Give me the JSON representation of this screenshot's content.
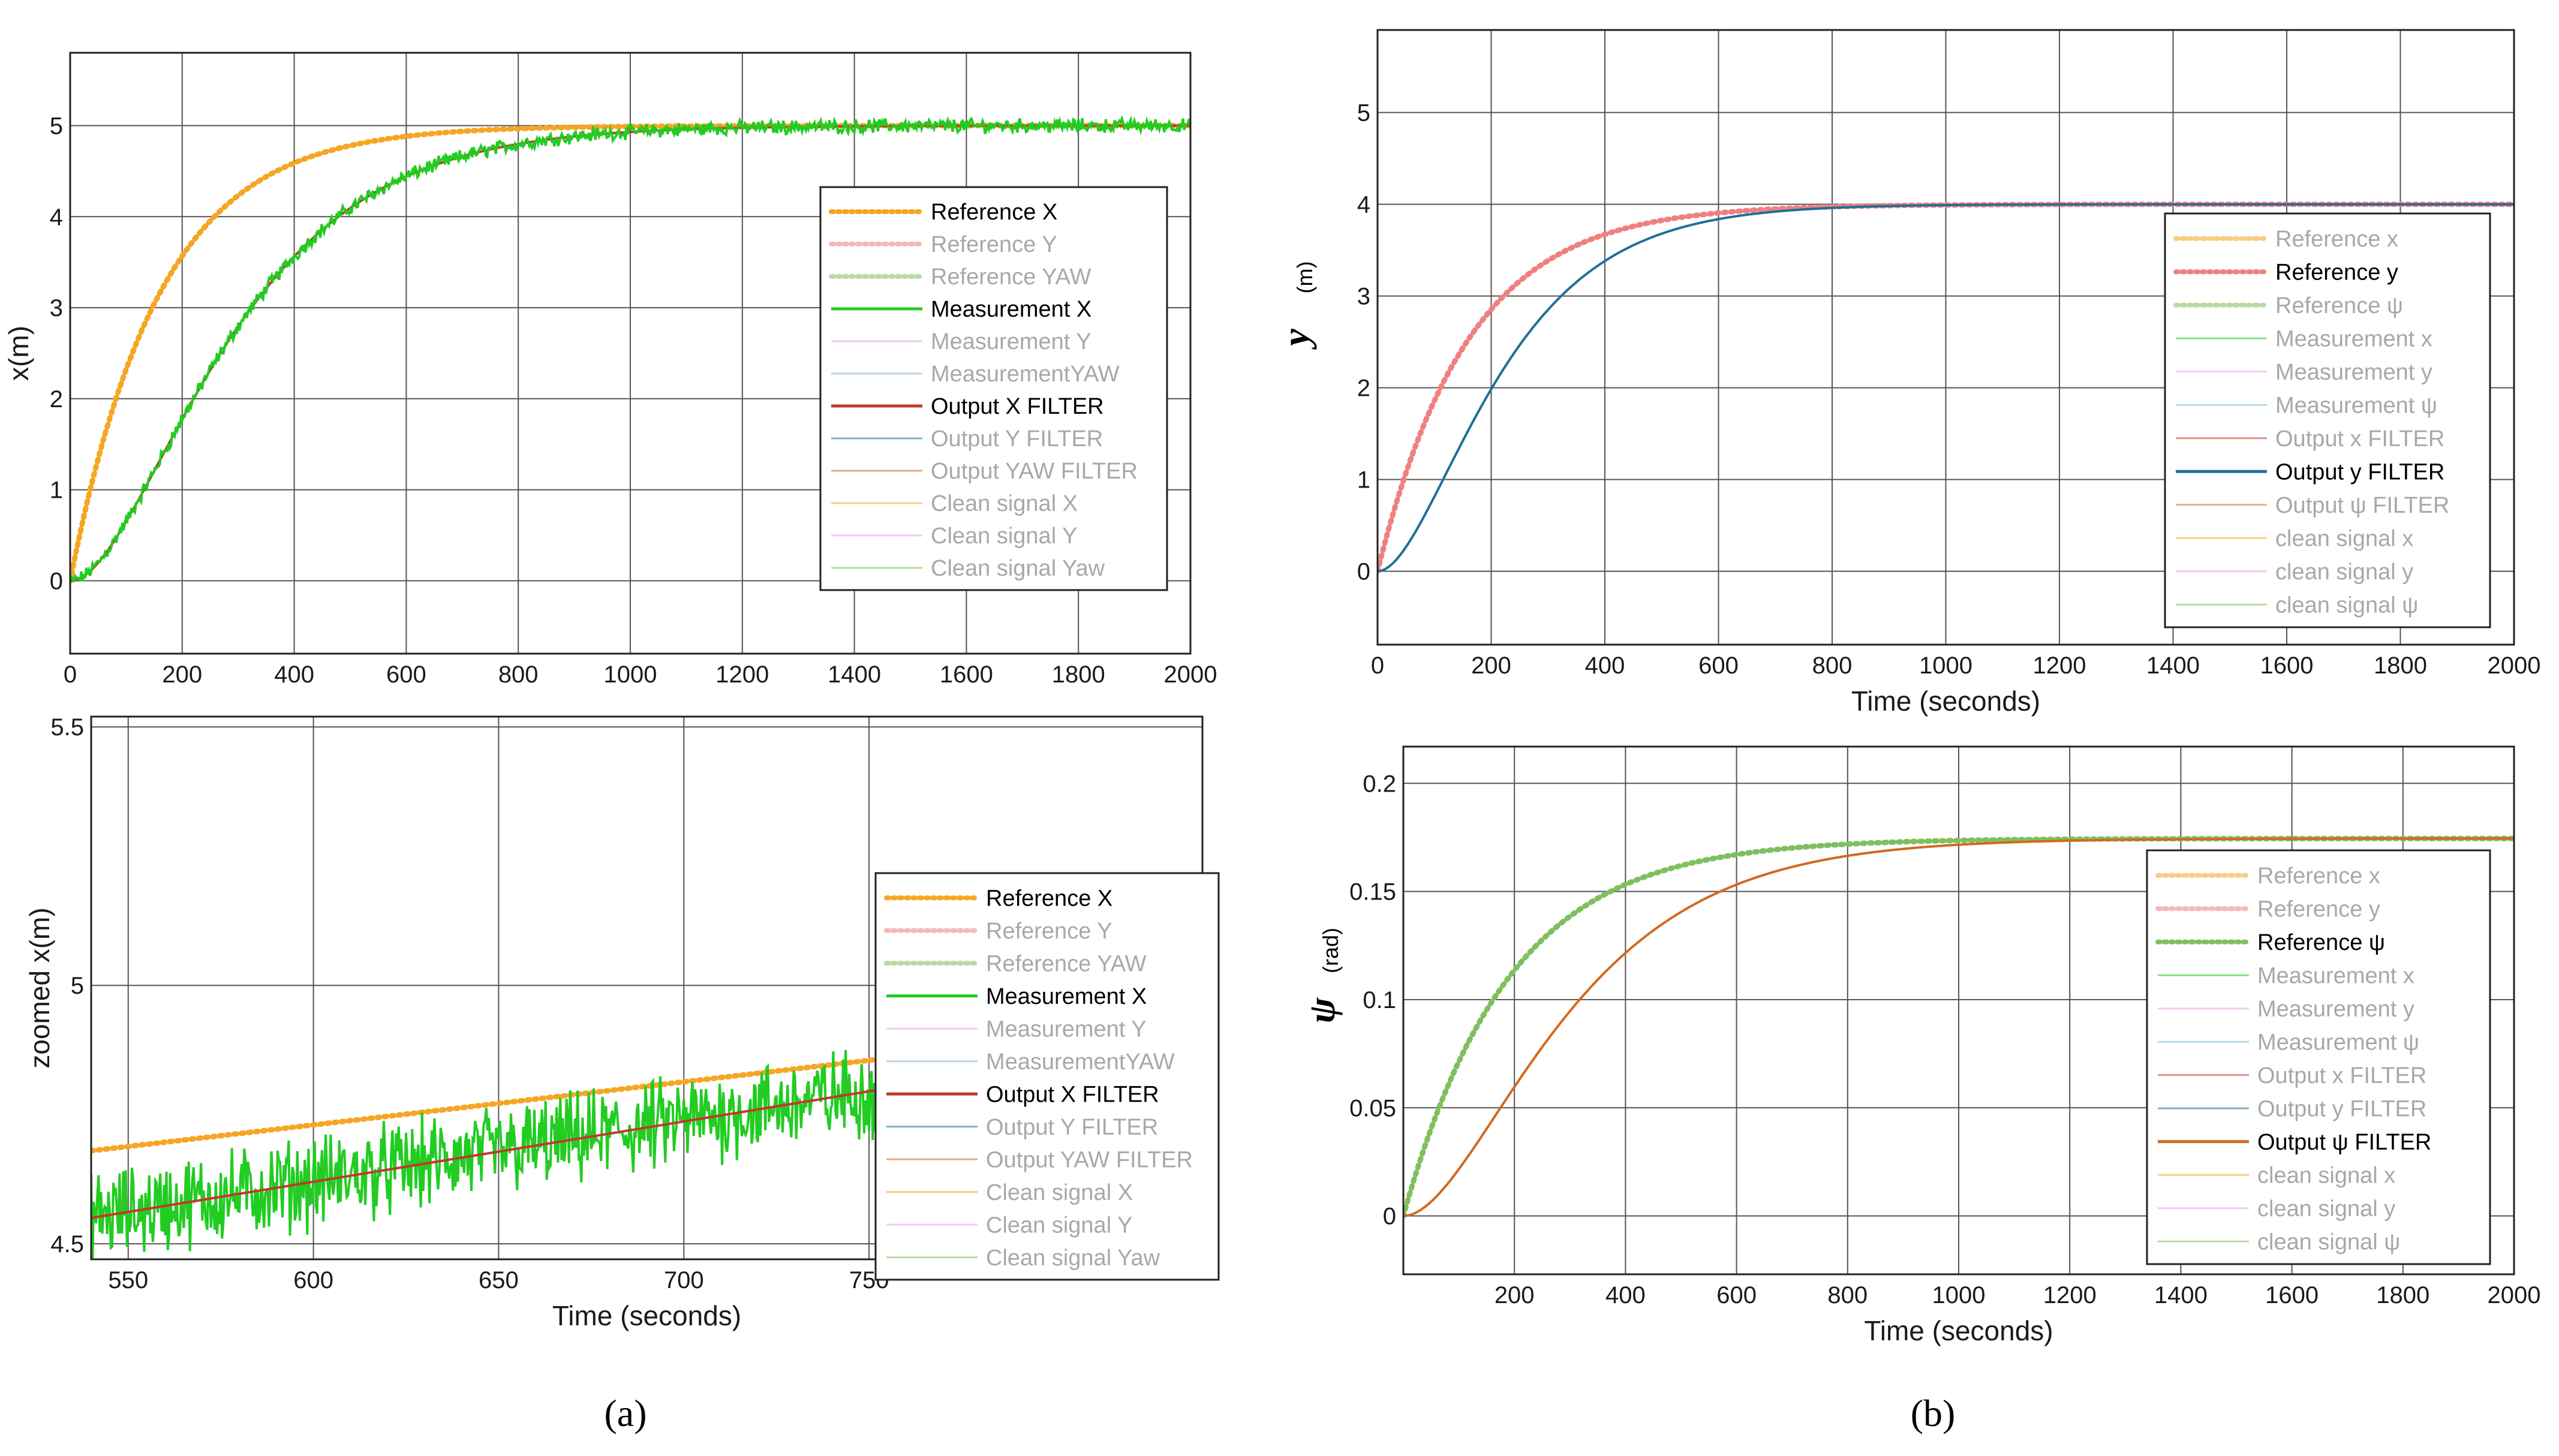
{
  "figure": {
    "caption_a": "(a)",
    "caption_b": "(b)"
  },
  "colors": {
    "ref_x": "#f5a623",
    "ref_y": "#f08080",
    "ref_yaw": "#7fbf5f",
    "meas_x": "#22cc22",
    "meas_y": "#e6a0e6",
    "meas_yaw": "#7fb8d8",
    "out_x": "#c0392b",
    "out_y": "#1f6f99",
    "out_yaw": "#d2691e",
    "faded_text": "#a8a8a8"
  },
  "chart_data": [
    {
      "id": "a1",
      "type": "line",
      "title": "",
      "xlabel": "",
      "ylabel": "x(m)",
      "xlim": [
        0,
        2000
      ],
      "ylim": [
        -0.8,
        5.8
      ],
      "xticks": [
        0,
        200,
        400,
        600,
        800,
        1000,
        1200,
        1400,
        1600,
        1800,
        2000
      ],
      "yticks": [
        0,
        1,
        2,
        3,
        4,
        5
      ],
      "grid": true,
      "legend_position": "center-right",
      "legend": [
        "Reference X",
        "Reference Y",
        "Reference YAW",
        "Measurement X",
        "Measurement Y",
        "MeasurementYAW",
        "Output X FILTER",
        "Output Y FILTER",
        "Output YAW FILTER",
        "Clean signal X",
        "Clean signal Y",
        "Clean signal Yaw"
      ],
      "legend_active": [
        true,
        false,
        false,
        true,
        false,
        false,
        true,
        false,
        false,
        false,
        false,
        false
      ],
      "series": [
        {
          "name": "Reference X",
          "model": "exp",
          "final": 5,
          "tau": 160,
          "style": "dotted",
          "color_key": "ref_x"
        },
        {
          "name": "Output X FILTER",
          "model": "lag2",
          "final": 5,
          "tau": 160,
          "style": "solid",
          "color_key": "out_x"
        },
        {
          "name": "Measurement X",
          "model": "lag2",
          "final": 5,
          "tau": 160,
          "noise": 0.06,
          "style": "solid",
          "color_key": "meas_x"
        }
      ]
    },
    {
      "id": "a2",
      "type": "line",
      "title": "",
      "xlabel": "Time (seconds)",
      "ylabel": "zoomed x(m)",
      "xlim": [
        540,
        840
      ],
      "ylim": [
        4.47,
        5.52
      ],
      "xticks": [
        550,
        600,
        650,
        700,
        750
      ],
      "yticks": [
        4.5,
        5,
        5.5
      ],
      "grid": true,
      "legend_position": "center-right",
      "legend": [
        "Reference X",
        "Reference Y",
        "Reference YAW",
        "Measurement X",
        "Measurement Y",
        "MeasurementYAW",
        "Output X FILTER",
        "Output Y FILTER",
        "Output YAW FILTER",
        "Clean signal X",
        "Clean signal Y",
        "Clean signal Yaw"
      ],
      "legend_active": [
        true,
        false,
        false,
        true,
        false,
        false,
        true,
        false,
        false,
        false,
        false,
        false
      ],
      "series": [
        {
          "name": "Reference X",
          "model": "linear",
          "y0": 4.68,
          "y1": 4.93,
          "style": "dotted",
          "color_key": "ref_x"
        },
        {
          "name": "Measurement X",
          "model": "linear",
          "y0": 4.55,
          "y1": 4.9,
          "noise": 0.07,
          "style": "solid",
          "color_key": "meas_x"
        },
        {
          "name": "Output X FILTER",
          "model": "linear",
          "y0": 4.55,
          "y1": 4.9,
          "style": "solid",
          "color_key": "out_x"
        }
      ]
    },
    {
      "id": "b1",
      "type": "line",
      "title": "",
      "xlabel": "Time (seconds)",
      "ylabel": "y",
      "ylabel_unit": "(m)",
      "xlim": [
        0,
        2000
      ],
      "ylim": [
        -0.8,
        5.9
      ],
      "xticks": [
        0,
        200,
        400,
        600,
        800,
        1000,
        1200,
        1400,
        1600,
        1800,
        2000
      ],
      "yticks": [
        0,
        1,
        2,
        3,
        4,
        5
      ],
      "grid": true,
      "legend_position": "center-right",
      "legend": [
        "Reference x",
        "Reference y",
        "Reference ψ",
        "Measurement x",
        "Measurement y",
        "Measurement ψ",
        "Output x FILTER",
        "Output y FILTER",
        "Output ψ FILTER",
        "clean signal x",
        "clean signal y",
        "clean signal ψ"
      ],
      "legend_active": [
        false,
        true,
        false,
        false,
        false,
        false,
        false,
        true,
        false,
        false,
        false,
        false
      ],
      "series": [
        {
          "name": "Reference y",
          "model": "exp",
          "final": 4,
          "tau": 160,
          "style": "dotted",
          "color_key": "ref_y"
        },
        {
          "name": "Output y FILTER",
          "model": "lag2",
          "final": 4,
          "tau": 120,
          "style": "solid",
          "color_key": "out_y"
        }
      ]
    },
    {
      "id": "b2",
      "type": "line",
      "title": "",
      "xlabel": "Time (seconds)",
      "ylabel": "ψ",
      "ylabel_unit": "(rad)",
      "xlim": [
        0,
        2000
      ],
      "ylim": [
        -0.027,
        0.217
      ],
      "xticks": [
        200,
        400,
        600,
        800,
        1000,
        1200,
        1400,
        1600,
        1800,
        2000
      ],
      "yticks": [
        0,
        0.05,
        0.1,
        0.15,
        0.2
      ],
      "grid": true,
      "legend_position": "center-right",
      "legend": [
        "Reference x",
        "Reference y",
        "Reference ψ",
        "Measurement x",
        "Measurement y",
        "Measurement ψ",
        "Output x FILTER",
        "Output y FILTER",
        "Output ψ FILTER",
        "clean signal x",
        "clean signal y",
        "clean signal ψ"
      ],
      "legend_active": [
        false,
        false,
        true,
        false,
        false,
        false,
        false,
        false,
        true,
        false,
        false,
        false
      ],
      "series": [
        {
          "name": "Reference ψ",
          "model": "exp",
          "final": 0.1745,
          "tau": 190,
          "style": "dotted",
          "color_key": "ref_yaw"
        },
        {
          "name": "Output ψ FILTER",
          "model": "lag2",
          "final": 0.1745,
          "tau": 165,
          "style": "solid",
          "color_key": "out_yaw"
        }
      ]
    }
  ]
}
